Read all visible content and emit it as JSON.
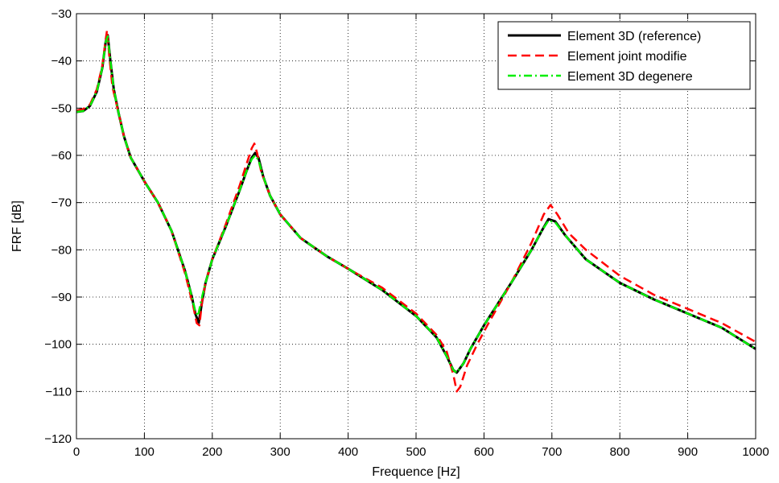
{
  "chart_data": {
    "type": "line",
    "xlabel": "Frequence [Hz]",
    "ylabel": "FRF [dB]",
    "xlim": [
      0,
      1000
    ],
    "ylim": [
      -120,
      -30
    ],
    "xticks": [
      0,
      100,
      200,
      300,
      400,
      500,
      600,
      700,
      800,
      900,
      1000
    ],
    "yticks": [
      -120,
      -110,
      -100,
      -90,
      -80,
      -70,
      -60,
      -50,
      -40,
      -30
    ],
    "xtick_labels": [
      "0",
      "100",
      "200",
      "300",
      "400",
      "500",
      "600",
      "700",
      "800",
      "900",
      "1000"
    ],
    "ytick_labels": [
      "−120",
      "−110",
      "−100",
      "−90",
      "−80",
      "−70",
      "−60",
      "−50",
      "−40",
      "−30"
    ],
    "grid": true,
    "legend_position": "top-right",
    "series": [
      {
        "name": "Element 3D (reference)",
        "color": "#000000",
        "style": "solid",
        "x": [
          0,
          10,
          20,
          30,
          38,
          43,
          46,
          50,
          55,
          62,
          70,
          80,
          100,
          120,
          140,
          160,
          170,
          175,
          180,
          185,
          190,
          200,
          220,
          240,
          250,
          258,
          263,
          268,
          275,
          285,
          300,
          330,
          370,
          400,
          450,
          500,
          530,
          545,
          555,
          560,
          570,
          580,
          600,
          640,
          670,
          685,
          695,
          705,
          720,
          750,
          800,
          850,
          900,
          950,
          1000
        ],
        "y": [
          -50.8,
          -50.6,
          -49.5,
          -46.5,
          -41.5,
          -36,
          -34.5,
          -40,
          -46,
          -51,
          -56,
          -60.5,
          -65.5,
          -70,
          -76,
          -84.5,
          -90,
          -93.5,
          -95.5,
          -91,
          -87,
          -82,
          -75,
          -67.5,
          -63.5,
          -60.5,
          -59.5,
          -60.5,
          -64.5,
          -68.5,
          -72.5,
          -77.5,
          -81.5,
          -84,
          -88.5,
          -94,
          -98.5,
          -102.5,
          -105.5,
          -106,
          -104,
          -101,
          -96,
          -87,
          -80,
          -76,
          -73.5,
          -74,
          -77,
          -82,
          -87,
          -90.5,
          -93.5,
          -96.5,
          -101
        ]
      },
      {
        "name": "Element joint modifie",
        "color": "#ff0000",
        "style": "dashed",
        "x": [
          0,
          10,
          20,
          30,
          38,
          43,
          45,
          48,
          53,
          62,
          70,
          80,
          100,
          120,
          140,
          160,
          172,
          177,
          181,
          185,
          190,
          200,
          220,
          240,
          250,
          258,
          262,
          266,
          272,
          285,
          300,
          330,
          370,
          400,
          450,
          500,
          530,
          545,
          555,
          560,
          565,
          575,
          590,
          605,
          640,
          670,
          688,
          698,
          708,
          725,
          750,
          800,
          850,
          900,
          950,
          1000
        ],
        "y": [
          -50.5,
          -50.2,
          -49.2,
          -46,
          -41,
          -35.5,
          -33.5,
          -38.5,
          -45.5,
          -51,
          -56,
          -60.5,
          -65.5,
          -70,
          -76,
          -85,
          -92,
          -95.5,
          -96,
          -91,
          -87,
          -82,
          -74.5,
          -66.5,
          -62,
          -58.5,
          -57.5,
          -59.5,
          -63.5,
          -68.5,
          -72.5,
          -77.5,
          -81.5,
          -84,
          -88,
          -93.5,
          -98,
          -101.5,
          -106.5,
          -110,
          -109,
          -104.5,
          -100,
          -96,
          -87,
          -78.5,
          -72.5,
          -70.5,
          -72.5,
          -76.5,
          -80,
          -85.5,
          -89.5,
          -92.5,
          -95.5,
          -99.5
        ]
      },
      {
        "name": "Element 3D degenere",
        "color": "#00ee00",
        "style": "dashdot",
        "x": [
          0,
          10,
          20,
          30,
          38,
          43,
          46,
          50,
          55,
          62,
          70,
          80,
          100,
          120,
          140,
          160,
          170,
          175,
          179,
          184,
          190,
          200,
          220,
          240,
          250,
          258,
          263,
          268,
          275,
          285,
          300,
          330,
          370,
          400,
          450,
          500,
          530,
          545,
          555,
          560,
          570,
          580,
          600,
          640,
          670,
          685,
          695,
          705,
          720,
          750,
          800,
          850,
          900,
          950,
          1000
        ],
        "y": [
          -50.8,
          -50.6,
          -49.5,
          -46.5,
          -41.5,
          -36,
          -34.8,
          -40,
          -46,
          -51,
          -56,
          -60.5,
          -65.5,
          -70,
          -76,
          -84.5,
          -90,
          -93,
          -94,
          -90.5,
          -87,
          -82,
          -75,
          -67.5,
          -63.5,
          -60.8,
          -60,
          -61,
          -64.5,
          -68.5,
          -72.5,
          -77.5,
          -81.5,
          -84,
          -88.5,
          -94,
          -98.5,
          -102.5,
          -105.5,
          -106,
          -104,
          -101,
          -96,
          -87,
          -80,
          -76,
          -73.8,
          -74.2,
          -77,
          -82,
          -87,
          -90.5,
          -93.5,
          -96.5,
          -101
        ]
      }
    ]
  }
}
